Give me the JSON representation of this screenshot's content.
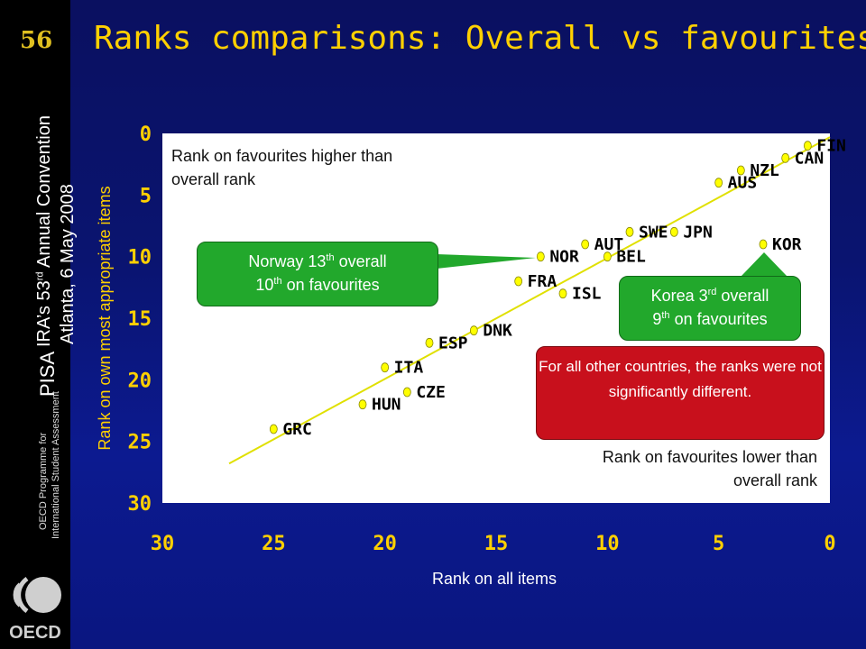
{
  "slide": {
    "page_number": "56",
    "title": "Ranks comparisons: Overall vs favourites"
  },
  "sidebar": {
    "pisa": "PISA",
    "convention_line1_pre": "IRA’s 53",
    "convention_line1_sup": "rd",
    "convention_line1_post": " Annual Convention",
    "convention_line2": "Atlanta, 6 May 2008",
    "oecd_sub1": "OECD Programme for",
    "oecd_sub2": "International Student Assessment",
    "logo_text": "OECD"
  },
  "annotations": {
    "upper_region": "Rank on favourites higher than overall rank",
    "lower_region": "Rank on favourites lower than overall rank",
    "norway_line1_pre": "Norway 13",
    "norway_line1_sup": "th",
    "norway_line1_post": " overall",
    "norway_line2_pre": "10",
    "norway_line2_sup": "th",
    "norway_line2_post": " on favourites",
    "korea_line1_pre": "Korea 3",
    "korea_line1_sup": "rd",
    "korea_line1_post": " overall",
    "korea_line2_pre": "9",
    "korea_line2_sup": "th",
    "korea_line2_post": " on favourites",
    "others": "For all other countries, the ranks were not significantly different."
  },
  "colors": {
    "title": "#ffd000",
    "points": "#ffff00",
    "line": "#e0e000",
    "green_box": "#22a82c",
    "red_box": "#c8101c",
    "axis_labels": "#ffd000",
    "axis_title": "#ffffff"
  },
  "chart_data": {
    "type": "scatter",
    "title": "",
    "xlabel": "Rank on all items",
    "ylabel": "Rank on own most appropriate items",
    "xlim": [
      30,
      0
    ],
    "ylim": [
      30,
      0
    ],
    "x_ticks": [
      30,
      25,
      20,
      15,
      10,
      5,
      0
    ],
    "y_ticks": [
      0,
      5,
      10,
      15,
      20,
      25,
      30
    ],
    "trendline": {
      "x": [
        27,
        0
      ],
      "y": [
        26.8,
        0.3
      ]
    },
    "grid": false,
    "points": [
      {
        "label": "FIN",
        "x": 1,
        "y": 1
      },
      {
        "label": "CAN",
        "x": 2,
        "y": 2
      },
      {
        "label": "NZL",
        "x": 4,
        "y": 3
      },
      {
        "label": "AUS",
        "x": 5,
        "y": 4
      },
      {
        "label": "SWE",
        "x": 9,
        "y": 8
      },
      {
        "label": "JPN",
        "x": 7,
        "y": 8
      },
      {
        "label": "KOR",
        "x": 3,
        "y": 9
      },
      {
        "label": "AUT",
        "x": 11,
        "y": 9
      },
      {
        "label": "NOR",
        "x": 13,
        "y": 10
      },
      {
        "label": "BEL",
        "x": 10,
        "y": 10
      },
      {
        "label": "FRA",
        "x": 14,
        "y": 12
      },
      {
        "label": "ISL",
        "x": 12,
        "y": 13
      },
      {
        "label": "DNK",
        "x": 16,
        "y": 16
      },
      {
        "label": "ESP",
        "x": 18,
        "y": 17
      },
      {
        "label": "ITA",
        "x": 20,
        "y": 19
      },
      {
        "label": "CZE",
        "x": 19,
        "y": 21
      },
      {
        "label": "HUN",
        "x": 21,
        "y": 22
      },
      {
        "label": "GRC",
        "x": 25,
        "y": 24
      }
    ]
  }
}
